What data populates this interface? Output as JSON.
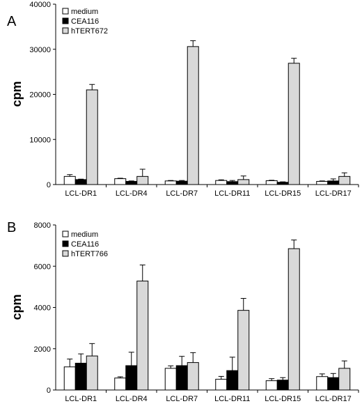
{
  "chart_data": [
    {
      "type": "bar",
      "panel": "A",
      "ylabel": "cpm",
      "ylim": [
        0,
        40000
      ],
      "yticks": [
        0,
        10000,
        20000,
        30000,
        40000
      ],
      "categories": [
        "LCL-DR1",
        "LCL-DR4",
        "LCL-DR7",
        "LCL-DR11",
        "LCL-DR15",
        "LCL-DR17"
      ],
      "series": [
        {
          "name": "medium",
          "color": "#ffffff",
          "values": [
            1800,
            1300,
            800,
            900,
            850,
            700
          ],
          "errors": [
            400,
            100,
            100,
            150,
            100,
            100
          ]
        },
        {
          "name": "CEA116",
          "color": "#000000",
          "values": [
            1100,
            700,
            750,
            650,
            500,
            800
          ],
          "errors": [
            100,
            100,
            150,
            250,
            100,
            450
          ]
        },
        {
          "name": "hTERT672",
          "color": "#d9d9d9",
          "values": [
            21000,
            1800,
            30600,
            1100,
            26900,
            1800
          ],
          "errors": [
            1200,
            1600,
            1300,
            800,
            1100,
            800
          ]
        }
      ],
      "legend": "top-left",
      "grid": false
    },
    {
      "type": "bar",
      "panel": "B",
      "ylabel": "cpm",
      "ylim": [
        0,
        8000
      ],
      "yticks": [
        0,
        2000,
        4000,
        6000,
        8000
      ],
      "categories": [
        "LCL-DR1",
        "LCL-DR4",
        "LCL-DR7",
        "LCL-DR11",
        "LCL-DR15",
        "LCL-DR17"
      ],
      "series": [
        {
          "name": "medium",
          "color": "#ffffff",
          "values": [
            1120,
            580,
            1050,
            520,
            450,
            650
          ],
          "errors": [
            380,
            60,
            120,
            140,
            100,
            130
          ]
        },
        {
          "name": "CEA116",
          "color": "#000000",
          "values": [
            1300,
            1180,
            1180,
            940,
            480,
            600
          ],
          "errors": [
            450,
            650,
            450,
            650,
            120,
            200
          ]
        },
        {
          "name": "hTERT766",
          "color": "#d9d9d9",
          "values": [
            1650,
            5280,
            1330,
            3860,
            6850,
            1050
          ],
          "errors": [
            600,
            780,
            480,
            580,
            420,
            360
          ]
        }
      ],
      "legend": "top-left",
      "grid": false
    }
  ]
}
